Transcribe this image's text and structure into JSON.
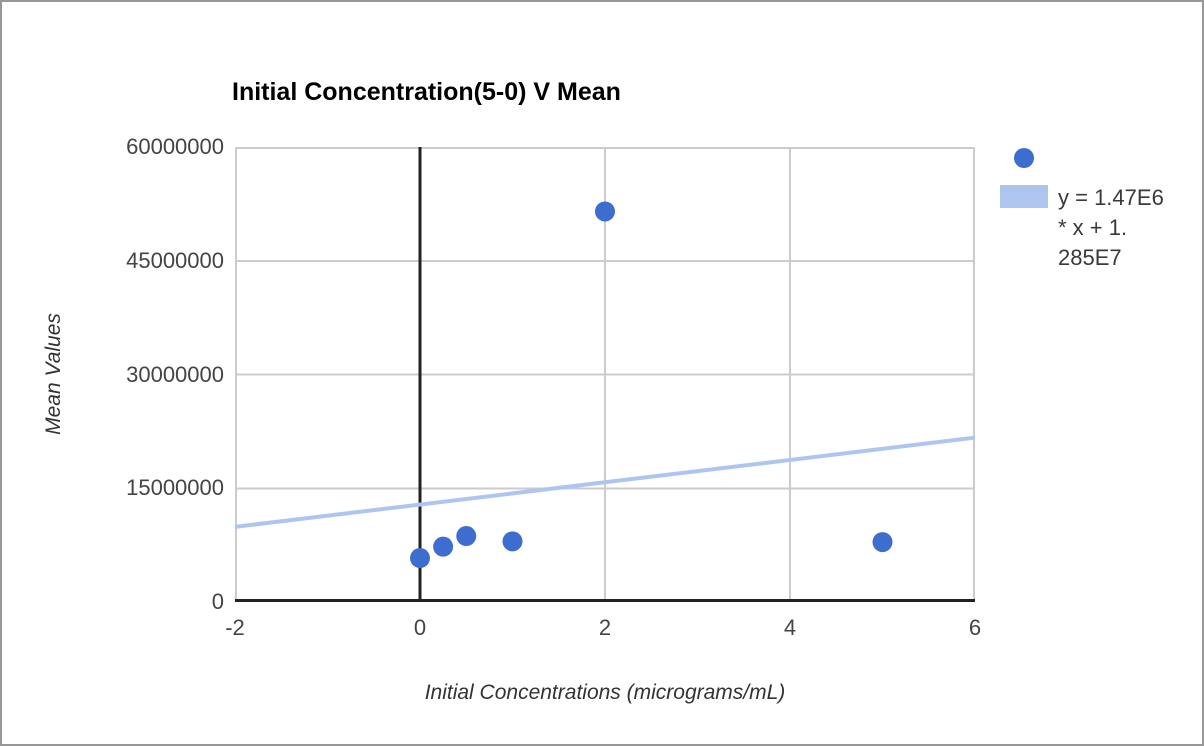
{
  "chart_data": {
    "type": "scatter",
    "title": "Initial Concentration(5-0) V Mean",
    "xlabel": "Initial Concentrations (micrograms/mL)",
    "ylabel": "Mean Values",
    "xlim": [
      -2,
      6
    ],
    "ylim": [
      0,
      60000000
    ],
    "x_ticks": [
      -2,
      0,
      2,
      4,
      6
    ],
    "y_ticks": [
      0,
      15000000,
      30000000,
      45000000,
      60000000
    ],
    "grid": true,
    "legend_position": "right",
    "series": [
      {
        "name": "Mean Values",
        "type": "scatter",
        "marker": "circle",
        "color": "#3d6ecf",
        "points": [
          {
            "x": 0,
            "y": 5800000
          },
          {
            "x": 0.25,
            "y": 7300000
          },
          {
            "x": 0.5,
            "y": 8700000
          },
          {
            "x": 1,
            "y": 8000000
          },
          {
            "x": 2,
            "y": 51500000
          },
          {
            "x": 5,
            "y": 7900000
          }
        ]
      },
      {
        "name": "Trendline",
        "type": "line",
        "color": "#aec6ef",
        "equation": "y = 1.47E6 * x + 1.285E7",
        "slope": 1470000,
        "intercept": 12850000
      }
    ]
  },
  "legend": {
    "marker_color": "#3d6ecf",
    "swatch_color": "#aec6ef",
    "trendline_label_lines": [
      "y = 1.47E6",
      "* x + 1.",
      "285E7"
    ]
  },
  "colors": {
    "gridline": "#cccccc",
    "axis": "#222222",
    "tick_label": "#444444",
    "title": "#000000",
    "axis_title": "#333333",
    "frame_border": "#979797"
  }
}
